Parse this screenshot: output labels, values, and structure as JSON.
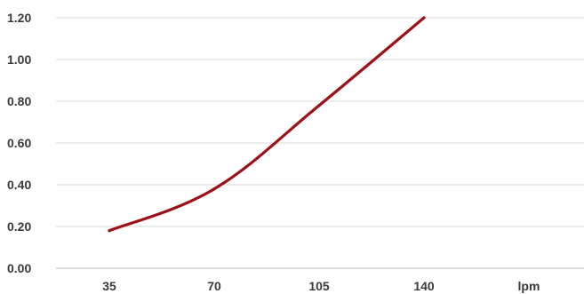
{
  "chart_data": {
    "type": "line",
    "x": [
      35,
      70,
      105,
      140
    ],
    "series": [
      {
        "values": [
          0.18,
          0.38,
          0.78,
          1.2
        ],
        "color": "#9c1016"
      }
    ],
    "x_tick_labels": [
      "35",
      "70",
      "105",
      "140",
      "lpm"
    ],
    "y_tick_labels": [
      "0.00",
      "0.20",
      "0.40",
      "0.60",
      "0.80",
      "1.00",
      "1.20"
    ],
    "ylim": [
      0,
      1.2
    ],
    "grid": true,
    "smooth": true,
    "colors": {
      "line": "#9c1016",
      "grid": "#d9d9d9",
      "text": "#3a3a3a"
    }
  }
}
